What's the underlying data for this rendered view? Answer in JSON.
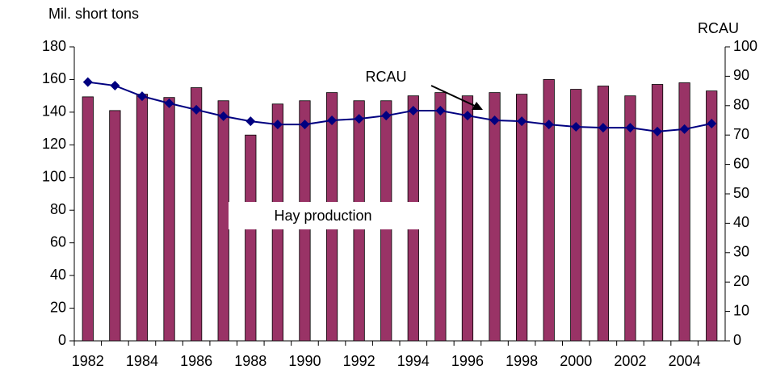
{
  "chart_data": {
    "type": "bar-line",
    "y_label": "Mil. short tons",
    "y2_label": "RCAU",
    "categories": [
      "1982",
      null,
      "1984",
      null,
      "1986",
      null,
      "1988",
      null,
      "1990",
      null,
      "1992",
      null,
      "1994",
      null,
      "1996",
      null,
      "1998",
      null,
      "2000",
      null,
      "2002",
      null,
      "2004",
      null
    ],
    "series": [
      {
        "name": "Hay production",
        "type": "bar",
        "color": "#993366",
        "values": [
          149.4,
          141,
          151,
          149,
          155,
          147,
          126,
          145,
          147,
          152,
          147,
          147,
          150,
          152,
          150,
          152,
          151,
          160,
          154,
          156,
          150,
          157,
          158,
          153
        ]
      },
      {
        "name": "RCAU",
        "type": "line",
        "axis": "y2",
        "color": "#000080",
        "values": [
          88,
          86.8,
          83.2,
          80.8,
          78.6,
          76.4,
          74.7,
          73.6,
          73.6,
          75,
          75.5,
          76.6,
          78.3,
          78.3,
          76.6,
          75,
          74.7,
          73.6,
          72.8,
          72.5,
          72.5,
          71.2,
          72,
          73.9
        ]
      }
    ],
    "ylim": [
      0,
      180
    ],
    "yticks": [
      0,
      20,
      40,
      60,
      80,
      100,
      120,
      140,
      160,
      180
    ],
    "y2lim": [
      0,
      100
    ],
    "y2ticks": [
      0,
      10,
      20,
      30,
      40,
      50,
      60,
      70,
      80,
      90,
      100
    ]
  }
}
